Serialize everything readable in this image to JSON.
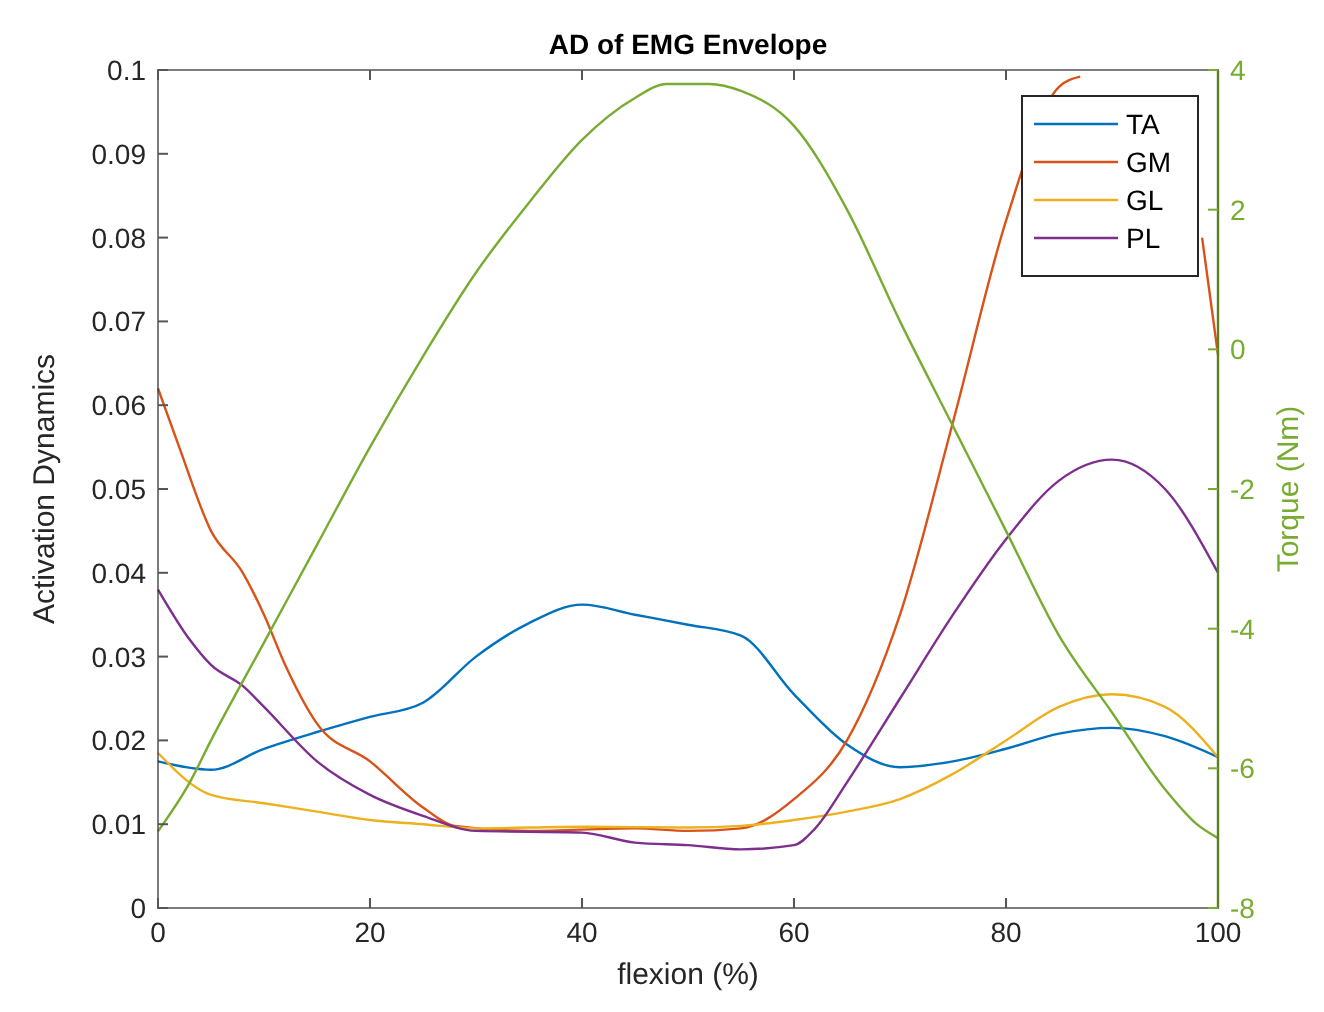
{
  "chart_data": {
    "type": "line",
    "title": "AD of EMG Envelope",
    "xlabel": "flexion (%)",
    "ylabel": "Activation Dynamics",
    "y2label": "Torque (Nm)",
    "xlim": [
      0,
      100
    ],
    "xticks": [
      0,
      20,
      40,
      60,
      80,
      100
    ],
    "ylim": [
      0,
      0.1
    ],
    "yticks": [
      0,
      0.01,
      0.02,
      0.03,
      0.04,
      0.05,
      0.06,
      0.07,
      0.08,
      0.09,
      0.1
    ],
    "y2lim": [
      -8,
      4
    ],
    "y2ticks": [
      -8,
      -6,
      -4,
      -2,
      0,
      2,
      4
    ],
    "legend": "top right",
    "grid": false,
    "series": [
      {
        "name": "TA",
        "color": "#0072bd",
        "x": [
          0,
          5,
          10,
          15,
          20,
          25,
          30,
          35,
          40,
          45,
          50,
          55,
          60,
          65,
          70,
          75,
          80,
          85,
          90,
          95,
          100
        ],
        "values": [
          0.0175,
          0.0165,
          0.019,
          0.021,
          0.0228,
          0.0245,
          0.03,
          0.034,
          0.0362,
          0.035,
          0.0338,
          0.0325,
          0.0255,
          0.0195,
          0.0168,
          0.0175,
          0.019,
          0.0208,
          0.0215,
          0.0205,
          0.018
        ]
      },
      {
        "name": "GM",
        "color": "#d95319",
        "x": [
          0,
          2,
          5,
          8,
          10,
          12,
          15,
          20,
          25,
          28,
          35,
          45,
          50,
          55,
          60,
          65,
          70,
          75,
          80,
          85,
          87,
          90,
          95,
          98.5,
          100
        ],
        "values": [
          0.062,
          0.055,
          0.045,
          0.04,
          0.035,
          0.029,
          0.022,
          0.0175,
          0.012,
          0.0098,
          0.0092,
          0.0095,
          0.0092,
          0.0095,
          0.013,
          0.02,
          0.035,
          0.058,
          0.082,
          0.098,
          0.0992,
          null,
          null,
          0.08,
          0.066
        ]
      },
      {
        "name": "GL",
        "color": "#edb120",
        "x": [
          0,
          5,
          10,
          15,
          20,
          25,
          30,
          40,
          50,
          55,
          60,
          65,
          70,
          75,
          80,
          85,
          90,
          95,
          100
        ],
        "values": [
          0.0185,
          0.0135,
          0.0125,
          0.0115,
          0.0105,
          0.01,
          0.0095,
          0.0097,
          0.0096,
          0.0098,
          0.0105,
          0.0115,
          0.013,
          0.016,
          0.02,
          0.024,
          0.0255,
          0.024,
          0.018
        ]
      },
      {
        "name": "PL",
        "color": "#7e2f8e",
        "x": [
          0,
          3,
          5,
          8,
          10,
          15,
          20,
          25,
          30,
          40,
          45,
          50,
          55,
          60,
          62,
          65,
          70,
          75,
          80,
          85,
          90,
          95,
          100
        ],
        "values": [
          0.038,
          0.032,
          0.029,
          0.0265,
          0.024,
          0.0175,
          0.0135,
          0.011,
          0.0092,
          0.009,
          0.0078,
          0.0075,
          0.007,
          0.0075,
          0.0095,
          0.015,
          0.025,
          0.035,
          0.044,
          0.051,
          0.0535,
          0.05,
          0.04
        ]
      },
      {
        "axis": "y2",
        "color": "#77ac30",
        "x": [
          0,
          3,
          5,
          10,
          15,
          20,
          25,
          30,
          35,
          40,
          45,
          48,
          52,
          55,
          60,
          65,
          70,
          75,
          80,
          85,
          90,
          95,
          98,
          100
        ],
        "values": [
          -6.9,
          -6.2,
          -5.6,
          -4.2,
          -2.8,
          -1.4,
          -0.1,
          1.1,
          2.1,
          3,
          3.6,
          3.8,
          3.8,
          3.7,
          3.2,
          2,
          0.4,
          -1.1,
          -2.6,
          -4.1,
          -5.2,
          -6.3,
          -6.8,
          -7
        ]
      }
    ]
  }
}
